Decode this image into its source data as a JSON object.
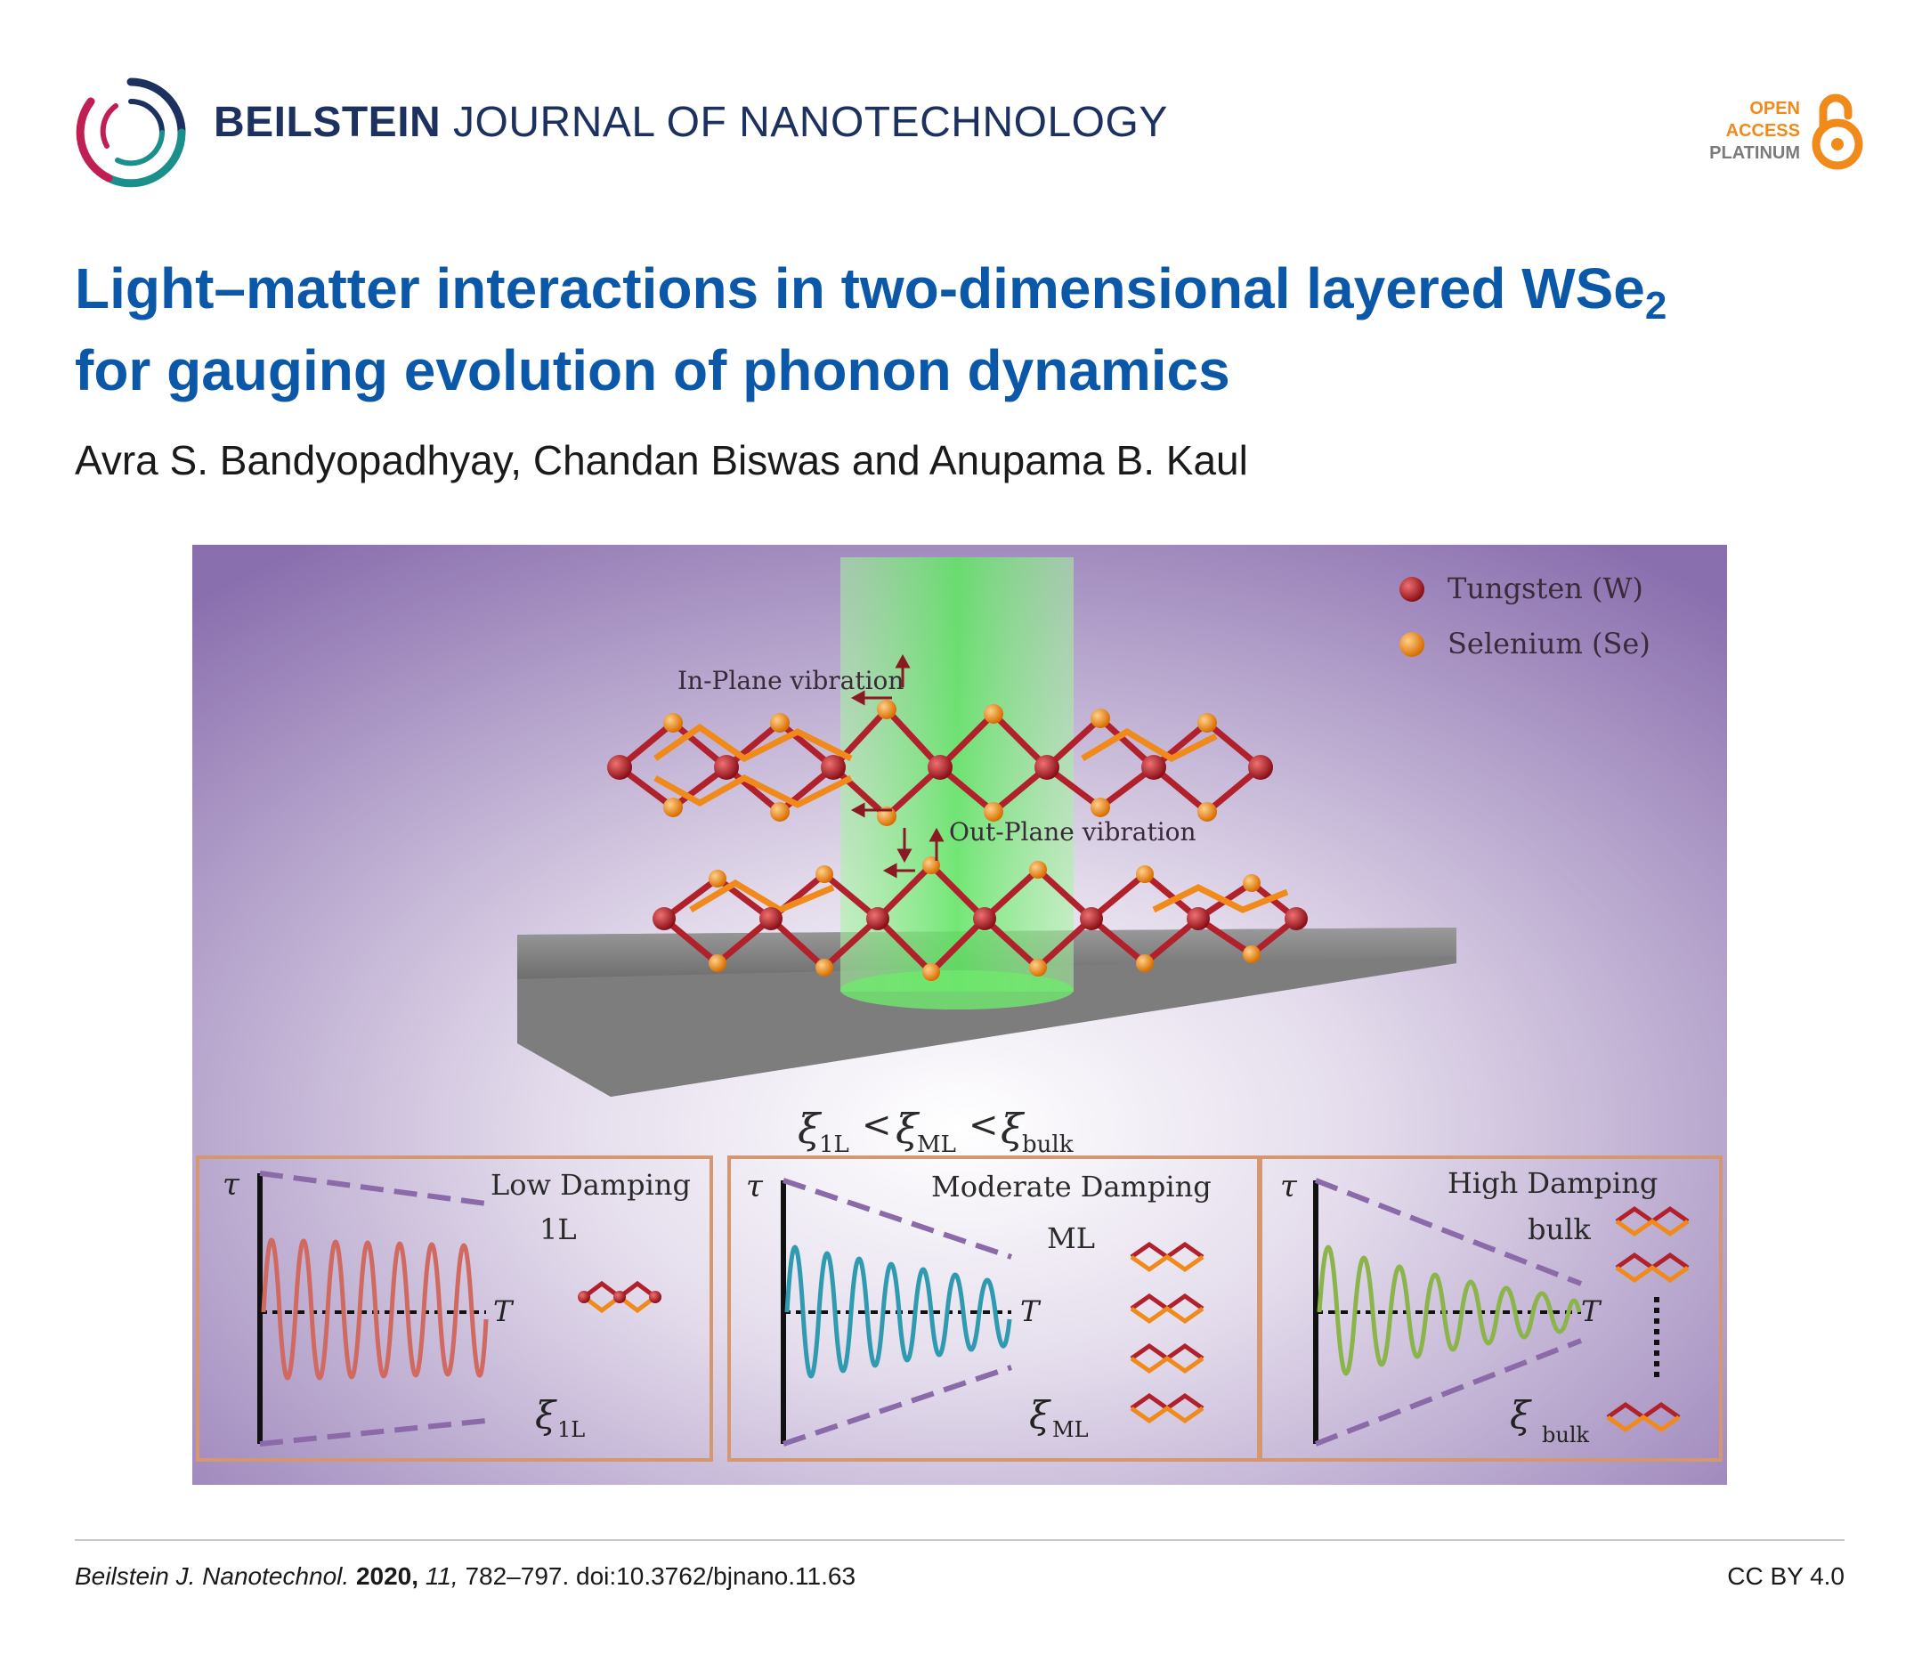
{
  "header": {
    "journal_bold": "BEILSTEIN",
    "journal_rest": " JOURNAL OF NANOTECHNOLOGY",
    "badge": {
      "line1": "OPEN",
      "line2": "ACCESS",
      "line3": "PLATINUM"
    }
  },
  "article": {
    "title_line1": "Light–matter interactions in two-dimensional layered WSe",
    "title_sub": "2",
    "title_line2": "for gauging evolution of phonon dynamics",
    "authors": "Avra S. Bandyopadhyay, Chandan Biswas and Anupama B. Kaul"
  },
  "figure": {
    "legend": {
      "tungsten": "Tungsten (W)",
      "selenium": "Selenium (Se)"
    },
    "labels": {
      "in_plane": "In-Plane vibration",
      "out_plane": "Out-Plane vibration"
    },
    "relation": {
      "xi": "ξ",
      "s1": "1L",
      "lt": "<",
      "s2": "ML",
      "s3": "bulk"
    },
    "panels": [
      {
        "title": "Low Damping",
        "layer": "1L",
        "axis_y": "τ",
        "axis_x": "T",
        "xi": "ξ",
        "xi_sub": "1L"
      },
      {
        "title": "Moderate Damping",
        "layer": "ML",
        "axis_y": "τ",
        "axis_x": "T",
        "xi": "ξ",
        "xi_sub": "ML"
      },
      {
        "title": "High Damping",
        "layer": "bulk",
        "axis_y": "τ",
        "axis_x": "T",
        "xi": "ξ",
        "xi_sub": "bulk"
      }
    ],
    "colors": {
      "tungsten": "#b0212c",
      "selenium": "#f0901e",
      "low": "#d06a60",
      "moderate": "#2f9ab0",
      "high": "#8bb54a",
      "frame": "#d59770"
    }
  },
  "footer": {
    "journal": "Beilstein J. Nanotechnol.",
    "year": "2020,",
    "volume": "11,",
    "rest": "782–797. doi:10.3762/bjnano.11.63",
    "license": "CC BY 4.0"
  }
}
